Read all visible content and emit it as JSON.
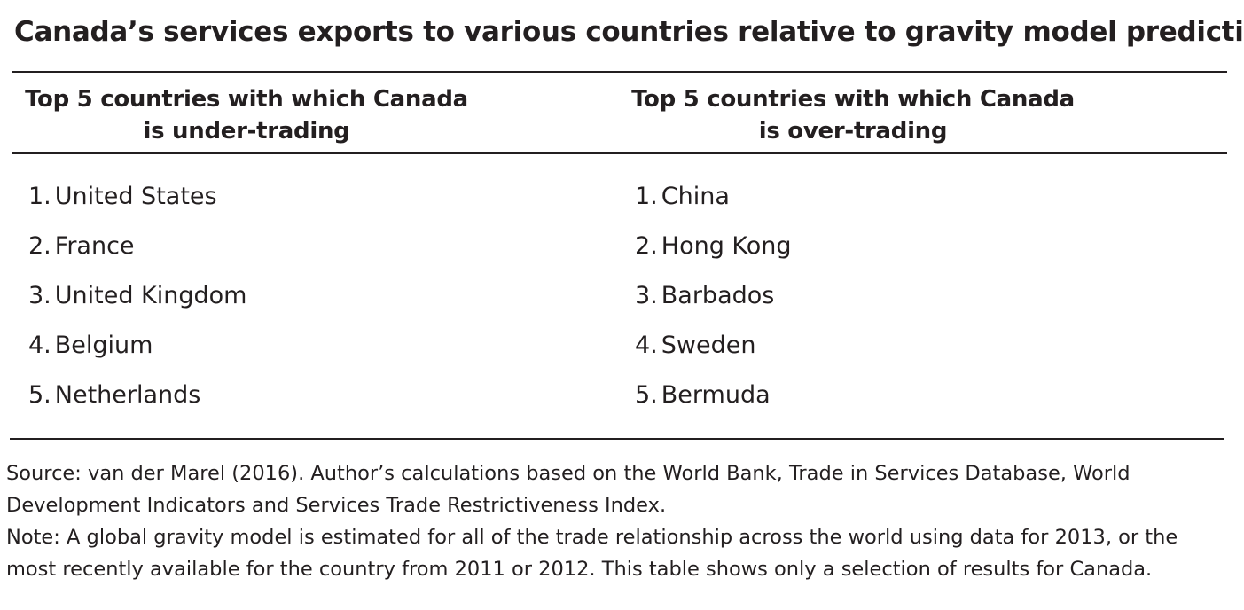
{
  "title": "Canada’s services exports to various countries relative to gravity model predictions",
  "columns": [
    {
      "header_line1": "Top 5 countries with which Canada",
      "header_line2": "is under-trading",
      "items": [
        {
          "num": "1.",
          "name": "United States"
        },
        {
          "num": "2.",
          "name": "France"
        },
        {
          "num": "3.",
          "name": "United Kingdom"
        },
        {
          "num": "4.",
          "name": "Belgium"
        },
        {
          "num": "5.",
          "name": "Netherlands"
        }
      ]
    },
    {
      "header_line1": "Top 5 countries with which Canada",
      "header_line2": "is over-trading",
      "items": [
        {
          "num": "1.",
          "name": "China"
        },
        {
          "num": "2.",
          "name": "Hong Kong"
        },
        {
          "num": "3.",
          "name": "Barbados"
        },
        {
          "num": "4.",
          "name": "Sweden"
        },
        {
          "num": "5.",
          "name": "Bermuda"
        }
      ]
    }
  ],
  "source_line1": "Source: van der Marel (2016). Author’s calculations based on the World Bank, Trade in Services Database, World",
  "source_line2": "Development Indicators and Services Trade Restrictiveness Index.",
  "note_line1": "Note: A global gravity model is estimated for all of the trade relationship across the world using data for 2013, or the",
  "note_line2": "most recently available for the country from 2011 or 2012. This table shows only a selection of results for Canada."
}
